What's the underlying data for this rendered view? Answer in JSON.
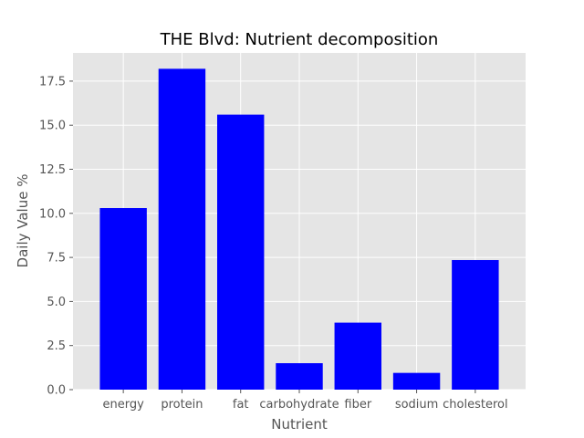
{
  "chart_data": {
    "type": "bar",
    "title": "THE Blvd: Nutrient decomposition",
    "xlabel": "Nutrient",
    "ylabel": "Daily Value %",
    "categories": [
      "energy",
      "protein",
      "fat",
      "carbohydrate",
      "fiber",
      "sodium",
      "cholesterol"
    ],
    "values": [
      10.3,
      18.2,
      15.6,
      1.5,
      3.8,
      0.95,
      7.35
    ],
    "ylim": [
      0,
      19.1
    ],
    "yticks": [
      0.0,
      2.5,
      5.0,
      7.5,
      10.0,
      12.5,
      15.0,
      17.5
    ],
    "ytick_labels": [
      "0.0",
      "2.5",
      "5.0",
      "7.5",
      "10.0",
      "12.5",
      "15.0",
      "17.5"
    ],
    "grid": true,
    "legend": false,
    "bar_color": "#0000ff",
    "background_color": "#e5e5e5",
    "grid_color": "#ffffff"
  }
}
